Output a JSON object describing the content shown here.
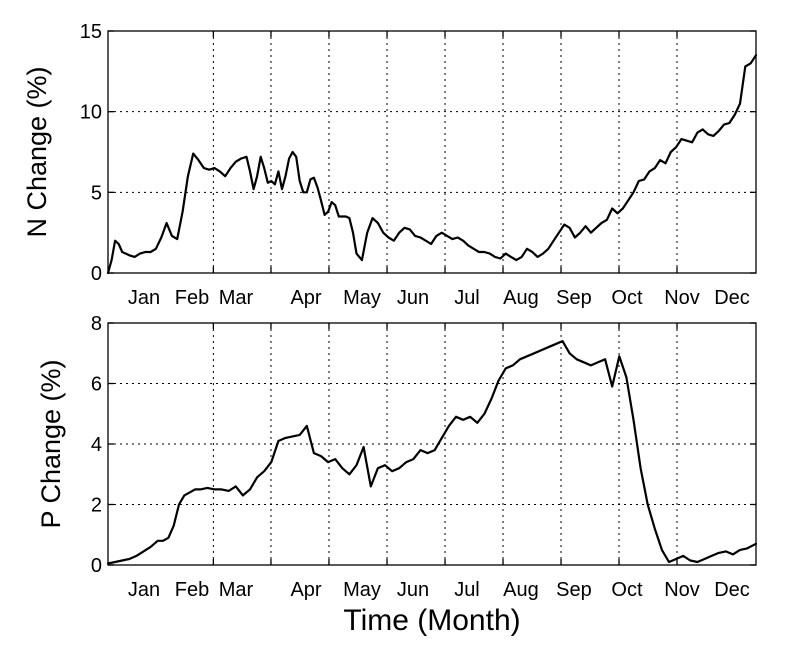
{
  "chart_data": [
    {
      "type": "line",
      "title": "",
      "xlabel": "",
      "ylabel": "N Change (%)",
      "xlim": [
        0,
        365
      ],
      "ylim": [
        0,
        15
      ],
      "yticks": [
        0,
        5,
        10,
        15
      ],
      "month_ticks": [
        "Jan",
        "Feb",
        "Mar",
        "Apr",
        "May",
        "Jun",
        "Jul",
        "Aug",
        "Sep",
        "Oct",
        "Nov",
        "Dec"
      ],
      "grid": true,
      "series": [
        {
          "x": [
            0,
            2,
            4,
            6,
            8,
            10,
            12,
            15,
            18,
            21,
            24,
            27,
            30,
            33,
            36,
            39,
            42,
            45,
            48,
            51,
            54,
            57,
            60,
            63,
            66,
            69,
            72,
            75,
            78,
            80,
            82,
            84,
            86,
            88,
            90,
            92,
            94,
            96,
            98,
            100,
            102,
            104,
            106,
            108,
            110,
            112,
            114,
            116,
            118,
            120,
            122,
            124,
            126,
            128,
            130,
            132,
            134,
            136,
            138,
            140,
            143,
            146,
            149,
            152,
            155,
            158,
            161,
            164,
            167,
            170,
            173,
            176,
            179,
            182,
            185,
            188,
            191,
            194,
            197,
            200,
            203,
            206,
            209,
            212,
            215,
            218,
            221,
            224,
            227,
            230,
            233,
            236,
            239,
            242,
            245,
            248,
            251,
            254,
            257,
            260,
            263,
            266,
            269,
            272,
            275,
            278,
            281,
            284,
            287,
            290,
            293,
            296,
            299,
            302,
            305,
            308,
            311,
            314,
            317,
            320,
            323,
            326,
            329,
            332,
            335,
            338,
            341,
            344,
            347,
            350,
            353,
            356,
            359,
            362,
            365
          ],
          "values": [
            0,
            0.8,
            2.0,
            1.8,
            1.3,
            1.2,
            1.1,
            1.0,
            1.2,
            1.3,
            1.3,
            1.5,
            2.2,
            3.1,
            2.3,
            2.1,
            3.8,
            6.0,
            7.4,
            7.0,
            6.5,
            6.4,
            6.5,
            6.3,
            6.0,
            6.5,
            6.9,
            7.1,
            7.2,
            6.3,
            5.2,
            6.0,
            7.2,
            6.5,
            5.6,
            5.7,
            5.5,
            6.3,
            5.2,
            6.0,
            7.1,
            7.5,
            7.2,
            5.7,
            5.0,
            5.0,
            5.8,
            5.9,
            5.3,
            4.5,
            3.6,
            3.8,
            4.4,
            4.2,
            3.5,
            3.5,
            3.5,
            3.4,
            2.5,
            1.2,
            0.8,
            2.5,
            3.4,
            3.1,
            2.5,
            2.2,
            2.0,
            2.5,
            2.8,
            2.7,
            2.3,
            2.2,
            2.0,
            1.8,
            2.3,
            2.5,
            2.3,
            2.1,
            2.2,
            2.0,
            1.7,
            1.5,
            1.3,
            1.3,
            1.2,
            1.0,
            0.9,
            1.2,
            1.0,
            0.8,
            1.0,
            1.5,
            1.3,
            1.0,
            1.2,
            1.5,
            2.0,
            2.5,
            3.0,
            2.8,
            2.2,
            2.5,
            2.9,
            2.5,
            2.8,
            3.1,
            3.3,
            4.0,
            3.7,
            4.0,
            4.5,
            5.0,
            5.7,
            5.8,
            6.3,
            6.5,
            7.0,
            6.8,
            7.5,
            7.8,
            8.3,
            8.2,
            8.1,
            8.7,
            8.9,
            8.6,
            8.5,
            8.8,
            9.2,
            9.3,
            9.8,
            10.5,
            12.8,
            13.0,
            13.5
          ]
        }
      ]
    },
    {
      "type": "line",
      "title": "",
      "xlabel": "Time (Month)",
      "ylabel": "P Change (%)",
      "xlim": [
        0,
        365
      ],
      "ylim": [
        0,
        8
      ],
      "yticks": [
        0,
        2,
        4,
        6,
        8
      ],
      "month_ticks": [
        "Jan",
        "Feb",
        "Mar",
        "Apr",
        "May",
        "Jun",
        "Jul",
        "Aug",
        "Sep",
        "Oct",
        "Nov",
        "Dec"
      ],
      "grid": true,
      "series": [
        {
          "x": [
            0,
            4,
            8,
            12,
            16,
            20,
            24,
            28,
            31,
            34,
            37,
            40,
            43,
            46,
            49,
            52,
            56,
            60,
            64,
            68,
            72,
            76,
            80,
            84,
            88,
            92,
            96,
            100,
            104,
            108,
            112,
            116,
            120,
            124,
            128,
            132,
            136,
            140,
            144,
            148,
            152,
            156,
            160,
            164,
            168,
            172,
            176,
            180,
            184,
            188,
            192,
            196,
            200,
            204,
            208,
            212,
            216,
            220,
            224,
            228,
            232,
            236,
            240,
            244,
            248,
            252,
            256,
            260,
            264,
            268,
            272,
            276,
            280,
            284,
            288,
            292,
            296,
            300,
            304,
            308,
            312,
            316,
            320,
            324,
            328,
            332,
            336,
            340,
            344,
            348,
            352,
            356,
            360,
            365
          ],
          "values": [
            0.05,
            0.1,
            0.15,
            0.2,
            0.3,
            0.45,
            0.6,
            0.8,
            0.8,
            0.9,
            1.3,
            2.0,
            2.3,
            2.4,
            2.5,
            2.5,
            2.55,
            2.5,
            2.5,
            2.45,
            2.6,
            2.3,
            2.5,
            2.9,
            3.1,
            3.4,
            4.1,
            4.2,
            4.25,
            4.3,
            4.6,
            3.7,
            3.6,
            3.4,
            3.5,
            3.2,
            3.0,
            3.3,
            3.9,
            2.6,
            3.2,
            3.3,
            3.1,
            3.2,
            3.4,
            3.5,
            3.8,
            3.7,
            3.8,
            4.2,
            4.6,
            4.9,
            4.8,
            4.9,
            4.7,
            5.0,
            5.5,
            6.1,
            6.5,
            6.6,
            6.8,
            6.9,
            7.0,
            7.1,
            7.2,
            7.3,
            7.4,
            7.0,
            6.8,
            6.7,
            6.6,
            6.7,
            6.8,
            5.9,
            6.9,
            6.2,
            4.8,
            3.2,
            2.0,
            1.2,
            0.5,
            0.1,
            0.2,
            0.3,
            0.15,
            0.1,
            0.2,
            0.3,
            0.4,
            0.45,
            0.35,
            0.5,
            0.55,
            0.7
          ]
        }
      ]
    }
  ]
}
